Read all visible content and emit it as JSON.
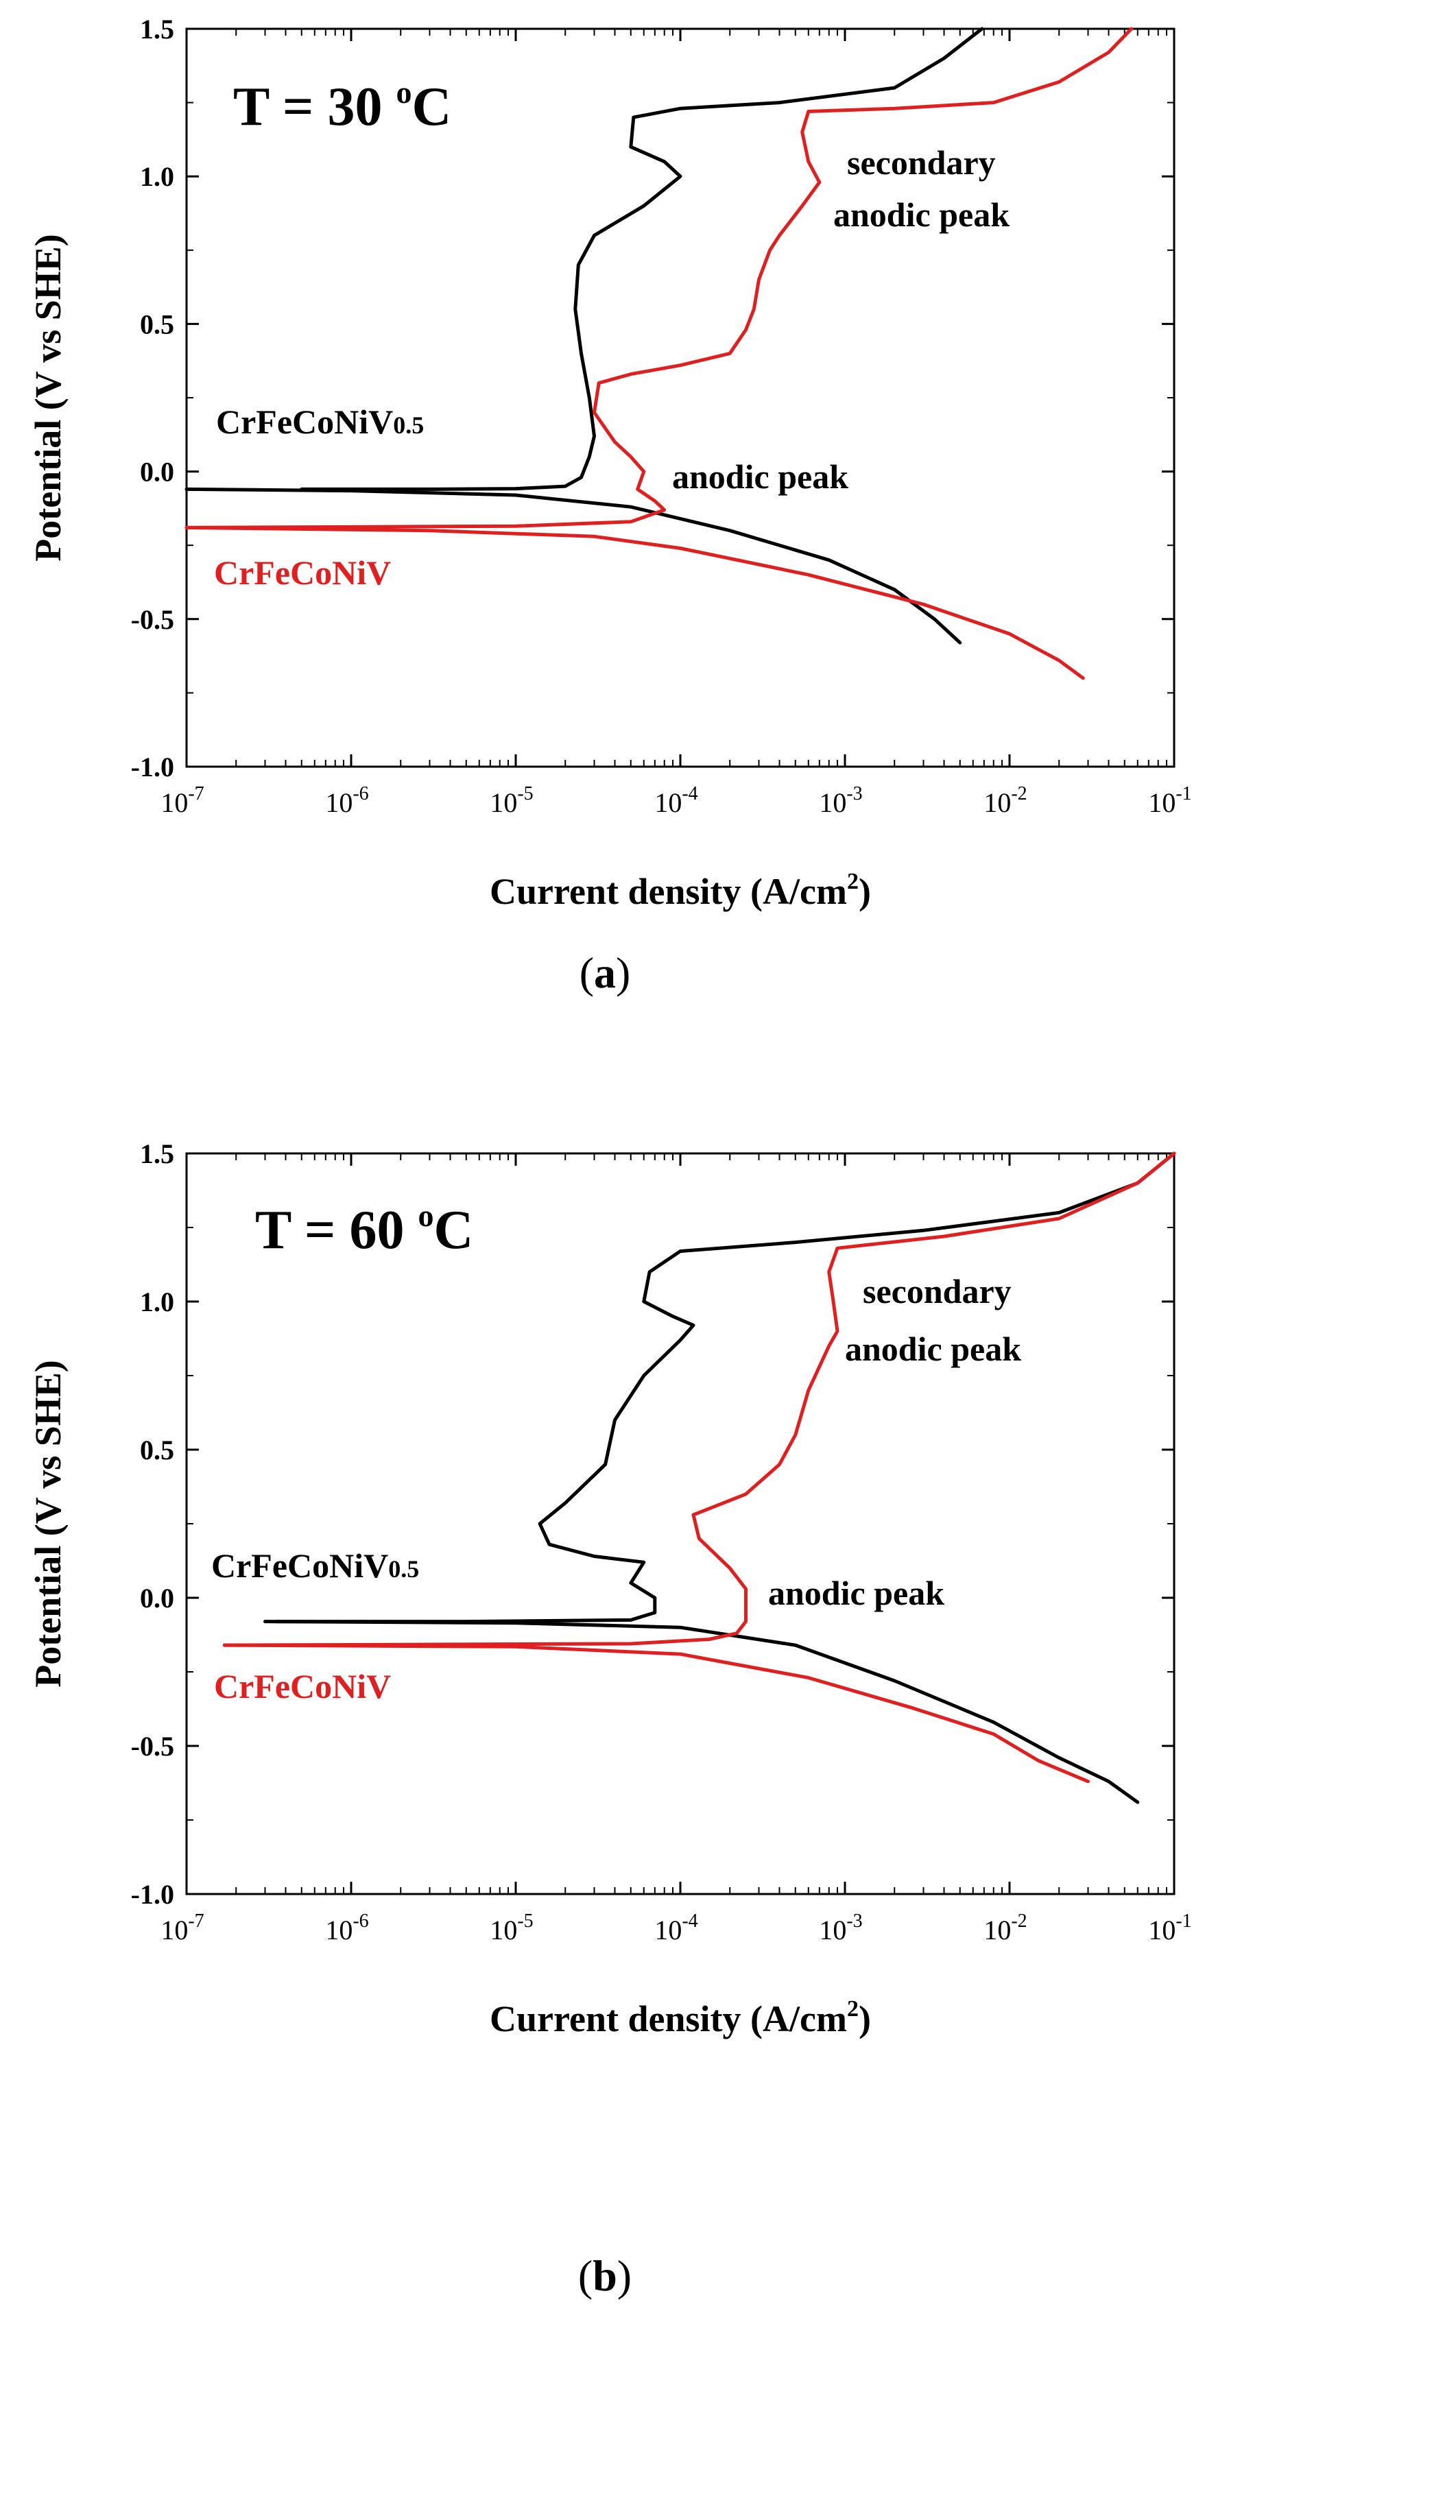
{
  "chart_data": [
    {
      "type": "line",
      "panel_label": "a",
      "title": "T = 30 °C",
      "title_parts": {
        "prefix": "T = 30 ",
        "sup": "o",
        "suffix": "C"
      },
      "xlabel": "Current density (A/cm2)",
      "xlabel_parts": {
        "main": "Current density (A/cm",
        "sup": "2",
        "end": ")"
      },
      "ylabel": "Potential (V vs SHE)",
      "xscale": "log",
      "xlim_exp": [
        -7,
        -1
      ],
      "ylim": [
        -1.0,
        1.5
      ],
      "x_ticks_exp": [
        -7,
        -6,
        -5,
        -4,
        -3,
        -2,
        -1
      ],
      "y_ticks": [
        "-1.0",
        "-0.5",
        "0.0",
        "0.5",
        "1.0",
        "1.5"
      ],
      "annotations": {
        "secondary_peak_line1": "secondary",
        "secondary_peak_line2": "anodic peak",
        "anodic_peak": "anodic peak"
      },
      "series": [
        {
          "name": "CrFeCoNiV0.5",
          "label_main": "CrFeCoNiV",
          "label_sub": "0.5",
          "color": "#000000",
          "points": [
            [
              5e-07,
              -0.06
            ],
            [
              3e-06,
              -0.06
            ],
            [
              1e-05,
              -0.058
            ],
            [
              2e-05,
              -0.05
            ],
            [
              2.5e-05,
              -0.02
            ],
            [
              2.8e-05,
              0.05
            ],
            [
              3e-05,
              0.12
            ],
            [
              2.8e-05,
              0.25
            ],
            [
              2.5e-05,
              0.4
            ],
            [
              2.3e-05,
              0.55
            ],
            [
              2.4e-05,
              0.7
            ],
            [
              3e-05,
              0.8
            ],
            [
              6e-05,
              0.9
            ],
            [
              0.0001,
              1.0
            ],
            [
              8e-05,
              1.05
            ],
            [
              5e-05,
              1.1
            ],
            [
              5.2e-05,
              1.2
            ],
            [
              0.0001,
              1.23
            ],
            [
              0.0004,
              1.25
            ],
            [
              0.002,
              1.3
            ],
            [
              0.004,
              1.4
            ],
            [
              0.0068,
              1.5
            ]
          ],
          "cathodic_points": [
            [
              1e-07,
              -0.06
            ],
            [
              1e-06,
              -0.065
            ],
            [
              1e-05,
              -0.08
            ],
            [
              5e-05,
              -0.12
            ],
            [
              0.0002,
              -0.2
            ],
            [
              0.0008,
              -0.3
            ],
            [
              0.002,
              -0.4
            ],
            [
              0.0035,
              -0.5
            ],
            [
              0.005,
              -0.58
            ]
          ]
        },
        {
          "name": "CrFeCoNiV",
          "label_main": "CrFeCoNiV",
          "label_sub": "",
          "color": "#e02020",
          "points": [
            [
              1e-07,
              -0.19
            ],
            [
              1e-05,
              -0.185
            ],
            [
              5e-05,
              -0.17
            ],
            [
              8e-05,
              -0.13
            ],
            [
              7e-05,
              -0.1
            ],
            [
              5.5e-05,
              -0.06
            ],
            [
              6e-05,
              0.0
            ],
            [
              5e-05,
              0.05
            ],
            [
              4e-05,
              0.1
            ],
            [
              3e-05,
              0.2
            ],
            [
              3.2e-05,
              0.3
            ],
            [
              5e-05,
              0.33
            ],
            [
              0.0001,
              0.36
            ],
            [
              0.0002,
              0.4
            ],
            [
              0.00025,
              0.48
            ],
            [
              0.00028,
              0.55
            ],
            [
              0.0003,
              0.65
            ],
            [
              0.00035,
              0.75
            ],
            [
              0.0004,
              0.8
            ],
            [
              0.00055,
              0.9
            ],
            [
              0.0007,
              0.98
            ],
            [
              0.0006,
              1.05
            ],
            [
              0.00055,
              1.15
            ],
            [
              0.0006,
              1.22
            ],
            [
              0.002,
              1.23
            ],
            [
              0.008,
              1.25
            ],
            [
              0.02,
              1.32
            ],
            [
              0.04,
              1.42
            ],
            [
              0.055,
              1.5
            ]
          ],
          "cathodic_points": [
            [
              1e-07,
              -0.19
            ],
            [
              3e-06,
              -0.2
            ],
            [
              3e-05,
              -0.22
            ],
            [
              0.0001,
              -0.26
            ],
            [
              0.0006,
              -0.35
            ],
            [
              0.003,
              -0.45
            ],
            [
              0.01,
              -0.55
            ],
            [
              0.02,
              -0.64
            ],
            [
              0.028,
              -0.7
            ]
          ]
        }
      ]
    },
    {
      "type": "line",
      "panel_label": "b",
      "title": "T = 60 °C",
      "title_parts": {
        "prefix": "T = 60 ",
        "sup": "o",
        "suffix": "C"
      },
      "xlabel": "Current density (A/cm2)",
      "xlabel_parts": {
        "main": "Current density (A/cm",
        "sup": "2",
        "end": ")"
      },
      "ylabel": "Potential (V vs SHE)",
      "xscale": "log",
      "xlim_exp": [
        -7,
        -1
      ],
      "ylim": [
        -1.0,
        1.5
      ],
      "x_ticks_exp": [
        -7,
        -6,
        -5,
        -4,
        -3,
        -2,
        -1
      ],
      "y_ticks": [
        "-1.0",
        "-0.5",
        "0.0",
        "0.5",
        "1.0",
        "1.5"
      ],
      "annotations": {
        "secondary_peak_line1": "secondary",
        "secondary_peak_line2": "anodic peak",
        "anodic_peak": "anodic peak"
      },
      "series": [
        {
          "name": "CrFeCoNiV0.5",
          "label_main": "CrFeCoNiV",
          "label_sub": "0.5",
          "color": "#000000",
          "points": [
            [
              3.5e-07,
              -0.08
            ],
            [
              5e-06,
              -0.08
            ],
            [
              5e-05,
              -0.075
            ],
            [
              7e-05,
              -0.05
            ],
            [
              7e-05,
              0.0
            ],
            [
              5e-05,
              0.05
            ],
            [
              6e-05,
              0.12
            ],
            [
              3e-05,
              0.14
            ],
            [
              1.6e-05,
              0.18
            ],
            [
              1.4e-05,
              0.25
            ],
            [
              2e-05,
              0.32
            ],
            [
              3.5e-05,
              0.45
            ],
            [
              4e-05,
              0.6
            ],
            [
              6e-05,
              0.75
            ],
            [
              0.0001,
              0.87
            ],
            [
              0.00012,
              0.92
            ],
            [
              9e-05,
              0.95
            ],
            [
              6e-05,
              1.0
            ],
            [
              6.5e-05,
              1.1
            ],
            [
              0.0001,
              1.17
            ],
            [
              0.0005,
              1.2
            ],
            [
              0.003,
              1.24
            ],
            [
              0.02,
              1.3
            ],
            [
              0.06,
              1.4
            ],
            [
              0.1,
              1.5
            ]
          ],
          "cathodic_points": [
            [
              3e-07,
              -0.08
            ],
            [
              1e-05,
              -0.085
            ],
            [
              0.0001,
              -0.1
            ],
            [
              0.0005,
              -0.16
            ],
            [
              0.002,
              -0.28
            ],
            [
              0.008,
              -0.42
            ],
            [
              0.02,
              -0.54
            ],
            [
              0.04,
              -0.62
            ],
            [
              0.06,
              -0.69
            ]
          ]
        },
        {
          "name": "CrFeCoNiV",
          "label_main": "CrFeCoNiV",
          "label_sub": "",
          "color": "#e02020",
          "points": [
            [
              1.7e-07,
              -0.16
            ],
            [
              5e-05,
              -0.155
            ],
            [
              0.00015,
              -0.14
            ],
            [
              0.00022,
              -0.12
            ],
            [
              0.00025,
              -0.08
            ],
            [
              0.00025,
              0.03
            ],
            [
              0.0002,
              0.1
            ],
            [
              0.00013,
              0.2
            ],
            [
              0.00012,
              0.28
            ],
            [
              0.00025,
              0.35
            ],
            [
              0.0004,
              0.45
            ],
            [
              0.0005,
              0.55
            ],
            [
              0.0006,
              0.7
            ],
            [
              0.0008,
              0.85
            ],
            [
              0.0009,
              0.9
            ],
            [
              0.00085,
              1.0
            ],
            [
              0.0008,
              1.1
            ],
            [
              0.0009,
              1.18
            ],
            [
              0.004,
              1.22
            ],
            [
              0.02,
              1.28
            ],
            [
              0.06,
              1.4
            ],
            [
              0.1,
              1.5
            ]
          ],
          "cathodic_points": [
            [
              1.7e-07,
              -0.16
            ],
            [
              1e-05,
              -0.165
            ],
            [
              0.0001,
              -0.19
            ],
            [
              0.0006,
              -0.27
            ],
            [
              0.0025,
              -0.37
            ],
            [
              0.008,
              -0.46
            ],
            [
              0.015,
              -0.55
            ],
            [
              0.03,
              -0.62
            ]
          ]
        }
      ]
    }
  ]
}
